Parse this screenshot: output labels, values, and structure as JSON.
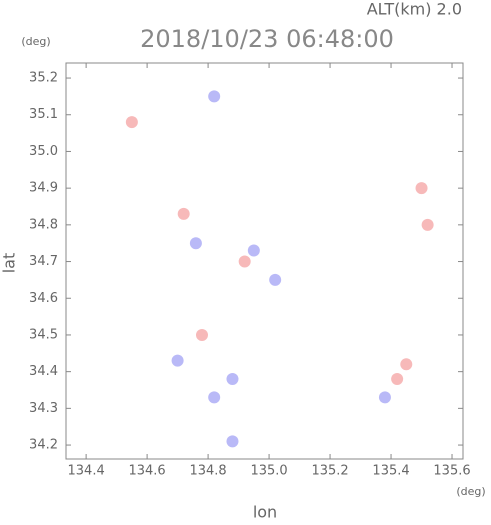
{
  "chart_data": {
    "type": "scatter",
    "title": "2018/10/23 06:48:00",
    "subtitle": "ALT(km) 2.0",
    "x_label": "lon",
    "y_label": "lat",
    "x_unit": "(deg)",
    "y_unit": "(deg)",
    "xlim": [
      134.334,
      135.636
    ],
    "ylim": [
      34.162,
      35.241
    ],
    "xticks": [
      134.4,
      134.6,
      134.8,
      {
        "value": 135,
        "label": "135.0"
      },
      135.2,
      135.4,
      135.6
    ],
    "yticks": [
      34.2,
      34.3,
      34.4,
      34.5,
      34.6,
      34.7,
      34.8,
      34.9,
      {
        "value": 35,
        "label": "35.0"
      },
      35.1,
      35.2
    ],
    "series": [
      {
        "color": "#f08080",
        "x": [
          134.55,
          135.5,
          135.52,
          134.72,
          135.42,
          134.92,
          134.78,
          135.45
        ],
        "y": [
          35.08,
          34.9,
          34.8,
          34.83,
          34.38,
          34.7,
          34.5,
          34.42
        ]
      },
      {
        "color": "#8080f0",
        "x": [
          134.88,
          134.82,
          134.88,
          135.38,
          134.76,
          135.02,
          134.82,
          134.95,
          134.7
        ],
        "y": [
          34.38,
          34.33,
          34.21,
          34.33,
          34.75,
          34.65,
          35.15,
          34.73,
          34.43
        ]
      }
    ]
  }
}
